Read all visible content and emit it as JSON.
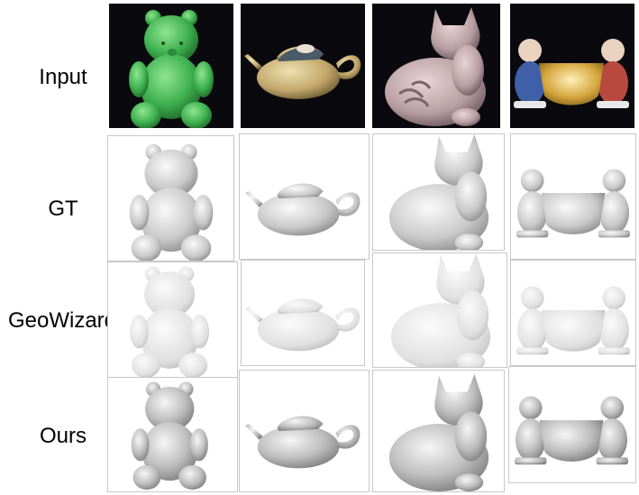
{
  "rows": [
    {
      "label": "Input"
    },
    {
      "label": "GT"
    },
    {
      "label": "GeoWizard"
    },
    {
      "label": "Ours"
    }
  ],
  "objects": [
    {
      "icon": "teddy-bear-icon",
      "input_color": "#4cbb5c"
    },
    {
      "icon": "teapot-icon",
      "input_color": "#c8b27a"
    },
    {
      "icon": "cat-figurine-icon",
      "input_color": "#c9b0b4"
    },
    {
      "icon": "figurines-bowl-icon",
      "input_color": "#d9b34a"
    }
  ]
}
